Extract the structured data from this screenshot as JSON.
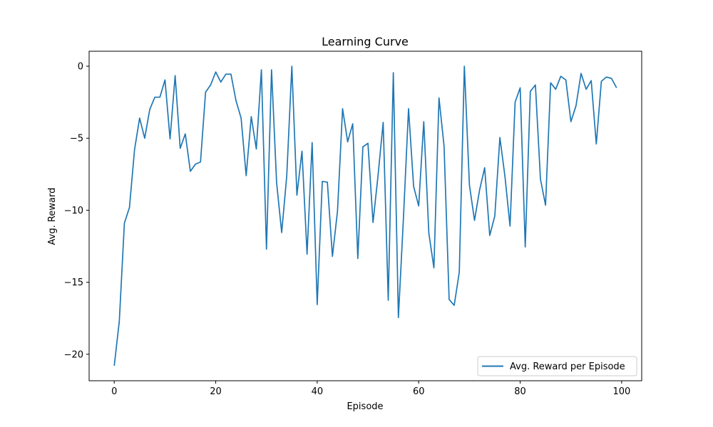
{
  "chart_data": {
    "type": "line",
    "title": "Learning Curve",
    "xlabel": "Episode",
    "ylabel": "Avg. Reward",
    "xlim": [
      -4.95,
      103.95
    ],
    "ylim": [
      -21.84,
      1.04
    ],
    "xticks": [
      0,
      20,
      40,
      60,
      80,
      100
    ],
    "yticks": [
      0,
      -5,
      -10,
      -15,
      -20
    ],
    "grid": false,
    "legend_position": "bottom-right",
    "series": [
      {
        "name": "Avg. Reward per Episode",
        "color": "#1f77b4",
        "x": [
          0,
          1,
          2,
          3,
          4,
          5,
          6,
          7,
          8,
          9,
          10,
          11,
          12,
          13,
          14,
          15,
          16,
          17,
          18,
          19,
          20,
          21,
          22,
          23,
          24,
          25,
          26,
          27,
          28,
          29,
          30,
          31,
          32,
          33,
          34,
          35,
          36,
          37,
          38,
          39,
          40,
          41,
          42,
          43,
          44,
          45,
          46,
          47,
          48,
          49,
          50,
          51,
          52,
          53,
          54,
          55,
          56,
          57,
          58,
          59,
          60,
          61,
          62,
          63,
          64,
          65,
          66,
          67,
          68,
          69,
          70,
          71,
          72,
          73,
          74,
          75,
          76,
          77,
          78,
          79,
          80,
          81,
          82,
          83,
          84,
          85,
          86,
          87,
          88,
          89,
          90,
          91,
          92,
          93,
          94,
          95,
          96,
          97,
          98,
          99
        ],
        "y": [
          -20.8,
          -17.7,
          -10.9,
          -9.8,
          -5.8,
          -3.6,
          -5.0,
          -3.0,
          -2.15,
          -2.15,
          -0.95,
          -5.05,
          -0.65,
          -5.7,
          -4.7,
          -7.3,
          -6.8,
          -6.65,
          -1.8,
          -1.3,
          -0.4,
          -1.1,
          -0.55,
          -0.55,
          -2.4,
          -3.6,
          -7.6,
          -3.5,
          -5.75,
          -0.25,
          -12.7,
          -0.25,
          -8.1,
          -11.55,
          -7.6,
          0.0,
          -8.95,
          -5.9,
          -13.05,
          -5.3,
          -16.55,
          -8.0,
          -8.05,
          -13.2,
          -10.05,
          -2.95,
          -5.25,
          -4.0,
          -13.35,
          -5.6,
          -5.35,
          -10.85,
          -7.55,
          -3.9,
          -16.25,
          -0.45,
          -17.45,
          -10.5,
          -2.95,
          -8.35,
          -9.7,
          -3.85,
          -11.6,
          -14.0,
          -2.2,
          -5.55,
          -16.2,
          -16.6,
          -14.3,
          0.0,
          -8.25,
          -10.7,
          -8.6,
          -7.05,
          -11.75,
          -10.4,
          -4.95,
          -7.65,
          -11.1,
          -2.5,
          -1.5,
          -12.55,
          -1.75,
          -1.3,
          -7.85,
          -9.65,
          -1.15,
          -1.6,
          -0.7,
          -0.95,
          -3.85,
          -2.75,
          -0.5,
          -1.6,
          -1.0,
          -5.4,
          -1.05,
          -0.75,
          -0.85,
          -1.5
        ]
      }
    ]
  }
}
